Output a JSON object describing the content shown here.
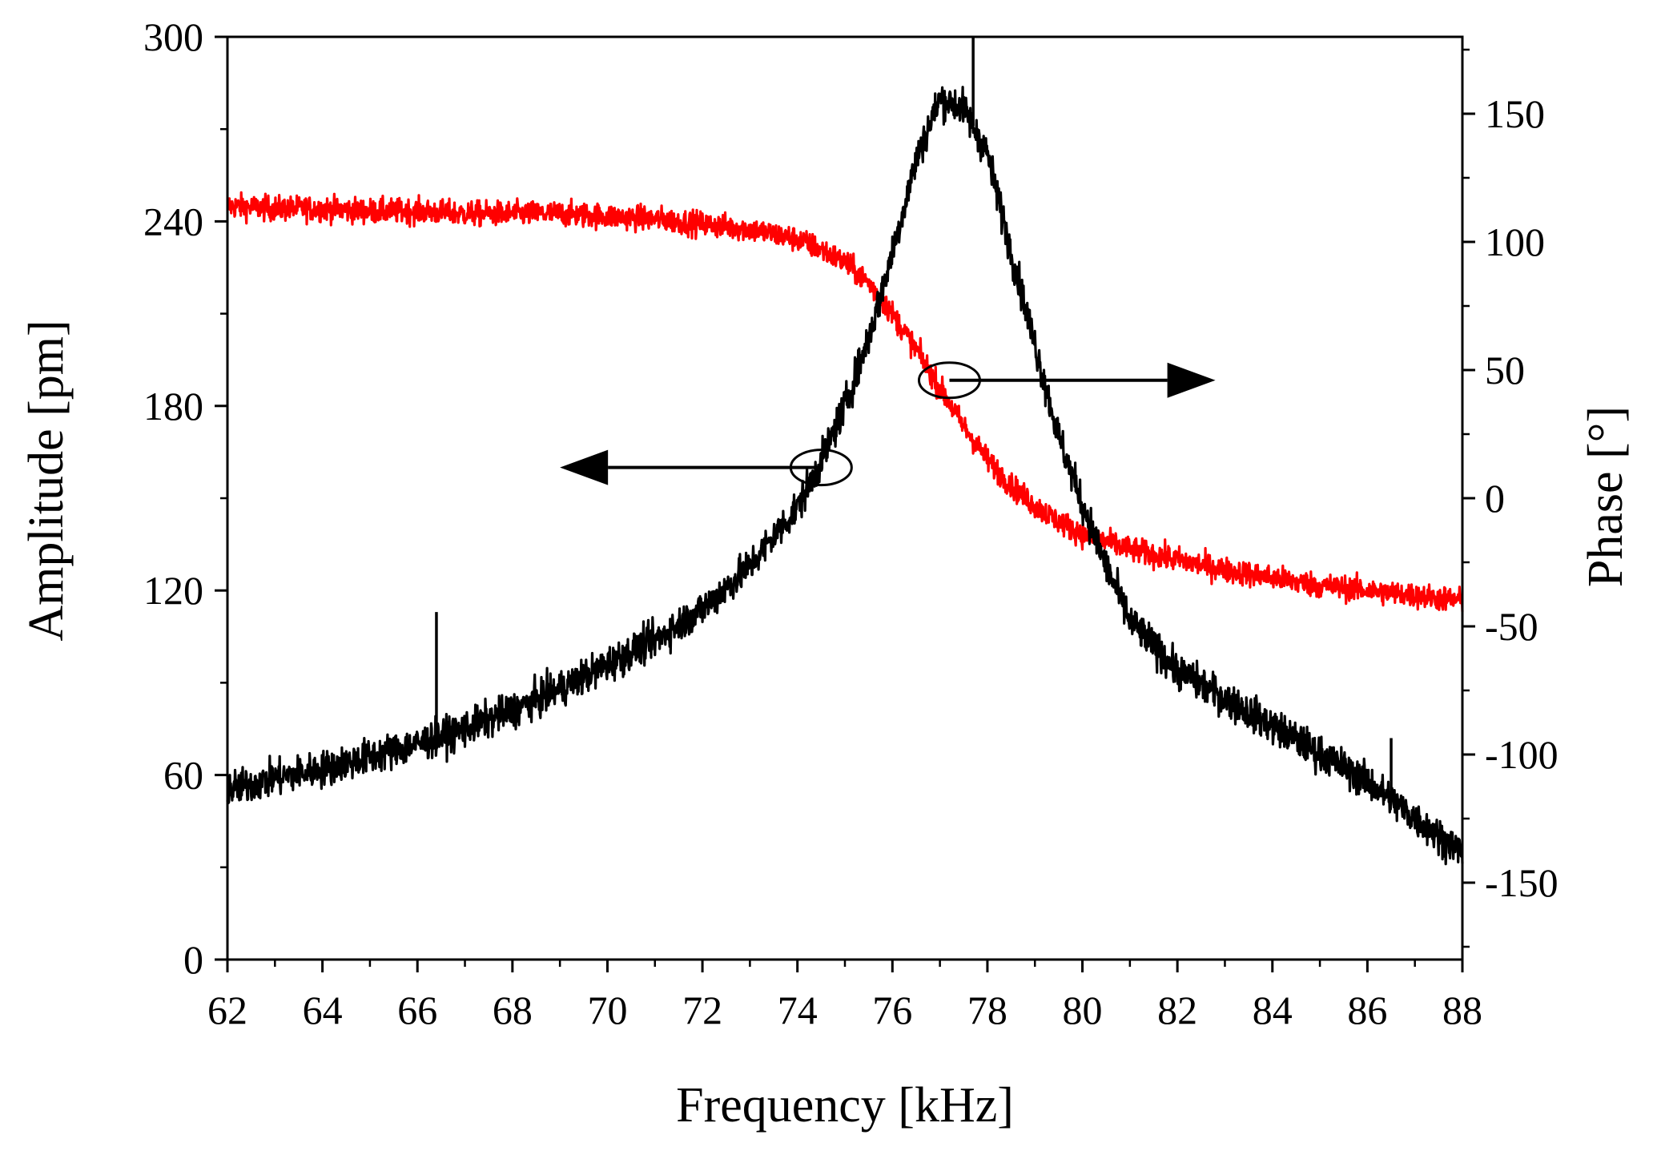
{
  "chart_data": {
    "type": "line",
    "title": "",
    "xlabel": "Frequency [kHz]",
    "ylabel": "Amplitude [pm]",
    "y2label": "Phase [°]",
    "xlim": [
      62,
      88
    ],
    "ylim": [
      0,
      300
    ],
    "y2lim": [
      -180,
      180
    ],
    "x_ticks": [
      "62",
      "64",
      "66",
      "68",
      "70",
      "72",
      "74",
      "76",
      "78",
      "80",
      "82",
      "84",
      "86",
      "88"
    ],
    "y_ticks": [
      "0",
      "60",
      "120",
      "180",
      "240",
      "300"
    ],
    "y2_ticks": [
      "-150",
      "-100",
      "-50",
      "0",
      "50",
      "100",
      "150"
    ],
    "series": [
      {
        "name": "Amplitude",
        "axis": "left",
        "color": "#000000",
        "x": [
          62,
          63,
          64,
          65,
          66,
          67,
          68,
          69,
          70,
          71,
          72,
          73,
          74,
          74.5,
          75,
          75.5,
          76,
          76.5,
          77,
          77.5,
          78,
          78.5,
          79,
          79.5,
          80,
          80.5,
          81,
          82,
          83,
          84,
          85,
          86,
          87,
          88
        ],
        "y": [
          55,
          59,
          62,
          66,
          70,
          75,
          81,
          88,
          96,
          104,
          114,
          128,
          147,
          162,
          180,
          202,
          230,
          260,
          280,
          277,
          262,
          230,
          200,
          170,
          148,
          128,
          110,
          94,
          85,
          76,
          67,
          58,
          46,
          35
        ],
        "noise": 6,
        "spikes": [
          {
            "x": 66.4,
            "y": 113
          },
          {
            "x": 77.7,
            "y": 300
          },
          {
            "x": 86.5,
            "y": 72
          }
        ]
      },
      {
        "name": "Phase",
        "axis": "right",
        "color": "#ff0000",
        "x": [
          62,
          63,
          64,
          65,
          66,
          67,
          68,
          69,
          70,
          71,
          72,
          73,
          74,
          74.5,
          75,
          75.5,
          76,
          76.5,
          77,
          77.5,
          78,
          78.5,
          79,
          79.5,
          80,
          80.5,
          81,
          82,
          83,
          84,
          85,
          86,
          87,
          88
        ],
        "y": [
          114,
          113,
          113,
          112,
          112,
          111,
          111,
          111,
          110,
          109,
          107,
          105,
          101,
          97,
          92,
          84,
          72,
          58,
          43,
          28,
          15,
          5,
          -3,
          -9,
          -14,
          -17,
          -20,
          -24,
          -28,
          -31,
          -34,
          -36,
          -38,
          -40
        ],
        "noise": 5
      }
    ],
    "annotations": [
      {
        "type": "ellipse-arrow",
        "x": 74.5,
        "y": 160,
        "axis": "left",
        "direction": "left",
        "arrow_to_x": 69.0
      },
      {
        "type": "ellipse-arrow",
        "x": 77.2,
        "y2": 46,
        "axis": "right",
        "direction": "right",
        "arrow_to_x": 82.8
      }
    ]
  }
}
